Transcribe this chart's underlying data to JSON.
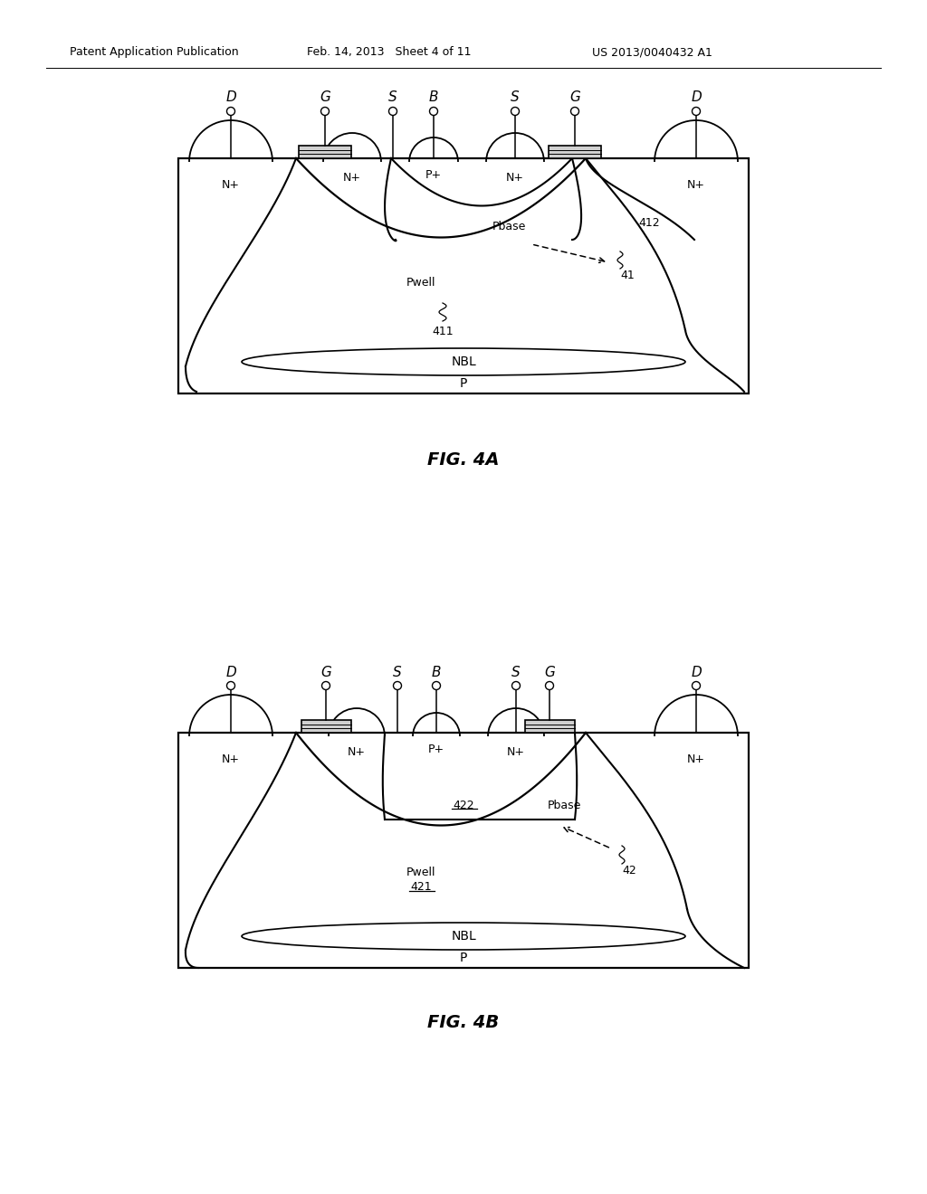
{
  "bg_color": "#ffffff",
  "line_color": "#000000",
  "fig_width": 10.24,
  "fig_height": 13.2,
  "header_left": "Patent Application Publication",
  "header_mid": "Feb. 14, 2013   Sheet 4 of 11",
  "header_right": "US 2013/0040432 A1",
  "fig4a_label": "FIG. 4A",
  "fig4b_label": "FIG. 4B"
}
